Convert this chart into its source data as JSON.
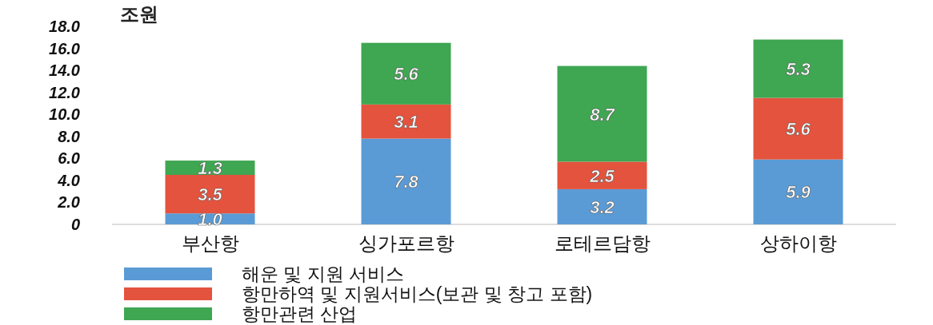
{
  "chart_data": {
    "type": "bar",
    "stacked": true,
    "ylabel": "조원",
    "categories": [
      "부산항",
      "싱가포르항",
      "로테르담항",
      "상하이항"
    ],
    "series": [
      {
        "name": "해운 및 지원 서비스",
        "color": "#5b9bd5",
        "values": [
          1.0,
          7.8,
          3.2,
          5.9
        ],
        "value_labels": [
          "1.0",
          "7.8",
          "3.2",
          "5.9"
        ]
      },
      {
        "name": "항만하역 및 지원서비스(보관 및 창고 포함)",
        "color": "#e4533d",
        "values": [
          3.5,
          3.1,
          2.5,
          5.6
        ],
        "value_labels": [
          "3.5",
          "3.1",
          "2.5",
          "5.6"
        ]
      },
      {
        "name": "항만관련 산업",
        "color": "#3fa652",
        "values": [
          1.3,
          5.6,
          8.7,
          5.3
        ],
        "value_labels": [
          "1.3",
          "5.6",
          "8.7",
          "5.3"
        ]
      }
    ],
    "ylim": [
      0,
      18
    ],
    "yticks": [
      {
        "value": 0,
        "label": "0"
      },
      {
        "value": 2,
        "label": "2.0"
      },
      {
        "value": 4,
        "label": "4.0"
      },
      {
        "value": 6,
        "label": "6.0"
      },
      {
        "value": 8,
        "label": "8.0"
      },
      {
        "value": 10,
        "label": "10.0"
      },
      {
        "value": 12,
        "label": "12.0"
      },
      {
        "value": 14,
        "label": "14.0"
      },
      {
        "value": 16,
        "label": "16.0"
      },
      {
        "value": 18,
        "label": "18.0"
      }
    ],
    "legend": "bottom"
  }
}
